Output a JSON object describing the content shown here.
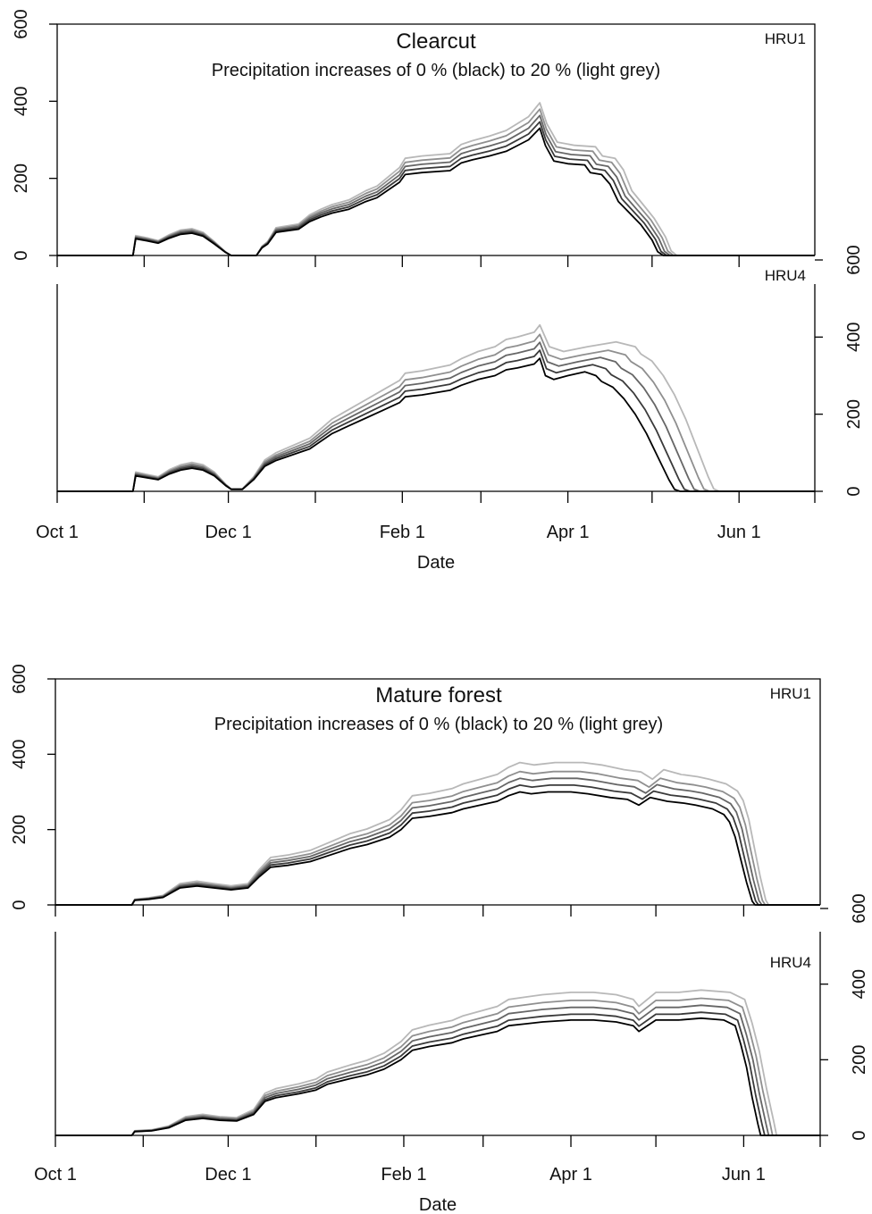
{
  "chart_data": [
    {
      "type": "line",
      "title": "Clearcut",
      "subtitle": "Precipitation increases of 0 % (black) to 20 % (light grey)",
      "xlabel": "Date",
      "x_ticks": [
        "Oct  1",
        "Dec  1",
        "Feb  1",
        "Apr  1",
        "Jun  1"
      ],
      "x_tick_days": [
        0,
        61,
        123,
        182,
        243
      ],
      "xlim": [
        0,
        270
      ],
      "panels": [
        {
          "label": "HRU1",
          "ylim": [
            0,
            600
          ],
          "y_ticks": [
            "0",
            "200",
            "400",
            "600"
          ],
          "y_axis_side": "left",
          "base": [
            [
              0,
              0
            ],
            [
              27,
              0
            ],
            [
              28,
              43
            ],
            [
              32,
              38
            ],
            [
              36,
              32
            ],
            [
              40,
              45
            ],
            [
              44,
              55
            ],
            [
              48,
              58
            ],
            [
              52,
              50
            ],
            [
              56,
              30
            ],
            [
              60,
              8
            ],
            [
              62,
              0
            ],
            [
              71,
              0
            ],
            [
              73,
              20
            ],
            [
              75,
              30
            ],
            [
              78,
              60
            ],
            [
              86,
              68
            ],
            [
              90,
              88
            ],
            [
              94,
              100
            ],
            [
              98,
              110
            ],
            [
              104,
              120
            ],
            [
              110,
              140
            ],
            [
              114,
              150
            ],
            [
              118,
              170
            ],
            [
              122,
              190
            ],
            [
              124,
              210
            ],
            [
              130,
              215
            ],
            [
              140,
              220
            ],
            [
              144,
              240
            ],
            [
              148,
              248
            ],
            [
              154,
              258
            ],
            [
              160,
              270
            ],
            [
              164,
              285
            ],
            [
              168,
              300
            ],
            [
              170,
              315
            ],
            [
              172,
              330
            ],
            [
              174,
              285
            ],
            [
              177,
              245
            ],
            [
              182,
              238
            ],
            [
              188,
              235
            ],
            [
              190,
              215
            ],
            [
              194,
              210
            ],
            [
              197,
              185
            ],
            [
              200,
              140
            ],
            [
              204,
              110
            ],
            [
              208,
              80
            ],
            [
              212,
              40
            ],
            [
              214,
              10
            ],
            [
              216,
              0
            ],
            [
              270,
              0
            ]
          ],
          "series": [
            {
              "increase_percent": 0,
              "scale": 1.0,
              "color": "#000000"
            },
            {
              "increase_percent": 5,
              "scale": 1.05,
              "color": "#3a3a3a"
            },
            {
              "increase_percent": 10,
              "scale": 1.1,
              "color": "#666666"
            },
            {
              "increase_percent": 15,
              "scale": 1.15,
              "color": "#8f8f8f"
            },
            {
              "increase_percent": 20,
              "scale": 1.2,
              "color": "#b8b8b8"
            }
          ],
          "melt_out_shift_days": 1.2
        },
        {
          "label": "HRU4",
          "ylim": [
            0,
            600
          ],
          "y_ticks": [
            "0",
            "200",
            "400",
            "600"
          ],
          "y_axis_side": "right",
          "base": [
            [
              0,
              0
            ],
            [
              27,
              0
            ],
            [
              28,
              40
            ],
            [
              32,
              35
            ],
            [
              36,
              30
            ],
            [
              40,
              45
            ],
            [
              44,
              55
            ],
            [
              48,
              60
            ],
            [
              52,
              55
            ],
            [
              56,
              40
            ],
            [
              60,
              15
            ],
            [
              62,
              5
            ],
            [
              66,
              5
            ],
            [
              70,
              30
            ],
            [
              74,
              65
            ],
            [
              78,
              80
            ],
            [
              84,
              95
            ],
            [
              90,
              110
            ],
            [
              94,
              130
            ],
            [
              98,
              150
            ],
            [
              104,
              170
            ],
            [
              110,
              190
            ],
            [
              116,
              210
            ],
            [
              122,
              230
            ],
            [
              124,
              245
            ],
            [
              130,
              250
            ],
            [
              140,
              262
            ],
            [
              144,
              275
            ],
            [
              150,
              290
            ],
            [
              156,
              300
            ],
            [
              160,
              315
            ],
            [
              164,
              320
            ],
            [
              170,
              330
            ],
            [
              172,
              345
            ],
            [
              174,
              300
            ],
            [
              177,
              290
            ],
            [
              182,
              300
            ],
            [
              188,
              310
            ],
            [
              192,
              300
            ],
            [
              194,
              285
            ],
            [
              198,
              270
            ],
            [
              202,
              240
            ],
            [
              206,
              200
            ],
            [
              210,
              150
            ],
            [
              214,
              90
            ],
            [
              218,
              30
            ],
            [
              220,
              5
            ],
            [
              222,
              0
            ],
            [
              270,
              0
            ]
          ],
          "series": [
            {
              "increase_percent": 0,
              "scale": 1.0,
              "color": "#000000"
            },
            {
              "increase_percent": 5,
              "scale": 1.06,
              "color": "#3a3a3a"
            },
            {
              "increase_percent": 10,
              "scale": 1.12,
              "color": "#666666"
            },
            {
              "increase_percent": 15,
              "scale": 1.18,
              "color": "#8f8f8f"
            },
            {
              "increase_percent": 20,
              "scale": 1.25,
              "color": "#b8b8b8"
            }
          ],
          "melt_out_shift_days": 3.5
        }
      ]
    },
    {
      "type": "line",
      "title": "Mature forest",
      "subtitle": "Precipitation increases of 0 % (black) to 20 % (light grey)",
      "xlabel": "Date",
      "x_ticks": [
        "Oct  1",
        "Dec  1",
        "Feb  1",
        "Apr  1",
        "Jun  1"
      ],
      "x_tick_days": [
        0,
        61,
        123,
        182,
        243
      ],
      "xlim": [
        0,
        270
      ],
      "panels": [
        {
          "label": "HRU1",
          "ylim": [
            0,
            600
          ],
          "y_ticks": [
            "0",
            "200",
            "400",
            "600"
          ],
          "y_axis_side": "left",
          "base": [
            [
              0,
              0
            ],
            [
              27,
              0
            ],
            [
              28,
              12
            ],
            [
              33,
              15
            ],
            [
              38,
              20
            ],
            [
              44,
              45
            ],
            [
              50,
              50
            ],
            [
              56,
              45
            ],
            [
              62,
              40
            ],
            [
              68,
              45
            ],
            [
              72,
              75
            ],
            [
              76,
              100
            ],
            [
              82,
              105
            ],
            [
              90,
              115
            ],
            [
              96,
              130
            ],
            [
              104,
              150
            ],
            [
              110,
              160
            ],
            [
              118,
              180
            ],
            [
              122,
              200
            ],
            [
              126,
              230
            ],
            [
              132,
              235
            ],
            [
              140,
              245
            ],
            [
              144,
              255
            ],
            [
              150,
              265
            ],
            [
              156,
              275
            ],
            [
              160,
              290
            ],
            [
              164,
              300
            ],
            [
              168,
              295
            ],
            [
              174,
              300
            ],
            [
              182,
              300
            ],
            [
              188,
              295
            ],
            [
              196,
              285
            ],
            [
              202,
              280
            ],
            [
              206,
              265
            ],
            [
              210,
              285
            ],
            [
              216,
              275
            ],
            [
              222,
              270
            ],
            [
              226,
              265
            ],
            [
              232,
              255
            ],
            [
              236,
              240
            ],
            [
              238,
              220
            ],
            [
              240,
              180
            ],
            [
              242,
              120
            ],
            [
              244,
              60
            ],
            [
              246,
              10
            ],
            [
              247,
              0
            ],
            [
              270,
              0
            ]
          ],
          "series": [
            {
              "increase_percent": 0,
              "scale": 1.0,
              "color": "#000000"
            },
            {
              "increase_percent": 5,
              "scale": 1.06,
              "color": "#3a3a3a"
            },
            {
              "increase_percent": 10,
              "scale": 1.12,
              "color": "#666666"
            },
            {
              "increase_percent": 15,
              "scale": 1.18,
              "color": "#8f8f8f"
            },
            {
              "increase_percent": 20,
              "scale": 1.26,
              "color": "#b8b8b8"
            }
          ],
          "melt_out_shift_days": 1.2
        },
        {
          "label": "HRU4",
          "ylim": [
            0,
            600
          ],
          "y_ticks": [
            "0",
            "200",
            "400",
            "600"
          ],
          "y_axis_side": "right",
          "base": [
            [
              0,
              0
            ],
            [
              27,
              0
            ],
            [
              28,
              10
            ],
            [
              34,
              12
            ],
            [
              40,
              20
            ],
            [
              46,
              40
            ],
            [
              52,
              45
            ],
            [
              58,
              40
            ],
            [
              64,
              38
            ],
            [
              70,
              55
            ],
            [
              74,
              90
            ],
            [
              78,
              100
            ],
            [
              86,
              110
            ],
            [
              92,
              120
            ],
            [
              96,
              135
            ],
            [
              104,
              150
            ],
            [
              110,
              160
            ],
            [
              116,
              175
            ],
            [
              122,
              200
            ],
            [
              126,
              225
            ],
            [
              132,
              235
            ],
            [
              140,
              245
            ],
            [
              144,
              255
            ],
            [
              150,
              265
            ],
            [
              156,
              275
            ],
            [
              160,
              290
            ],
            [
              166,
              295
            ],
            [
              172,
              300
            ],
            [
              182,
              305
            ],
            [
              190,
              305
            ],
            [
              198,
              300
            ],
            [
              204,
              290
            ],
            [
              206,
              275
            ],
            [
              212,
              305
            ],
            [
              220,
              305
            ],
            [
              228,
              310
            ],
            [
              236,
              305
            ],
            [
              240,
              290
            ],
            [
              242,
              240
            ],
            [
              244,
              180
            ],
            [
              246,
              100
            ],
            [
              248,
              30
            ],
            [
              249,
              0
            ],
            [
              270,
              0
            ]
          ],
          "series": [
            {
              "increase_percent": 0,
              "scale": 1.0,
              "color": "#000000"
            },
            {
              "increase_percent": 5,
              "scale": 1.05,
              "color": "#3a3a3a"
            },
            {
              "increase_percent": 10,
              "scale": 1.11,
              "color": "#666666"
            },
            {
              "increase_percent": 15,
              "scale": 1.17,
              "color": "#8f8f8f"
            },
            {
              "increase_percent": 20,
              "scale": 1.24,
              "color": "#b8b8b8"
            }
          ],
          "melt_out_shift_days": 1.4
        }
      ]
    }
  ]
}
